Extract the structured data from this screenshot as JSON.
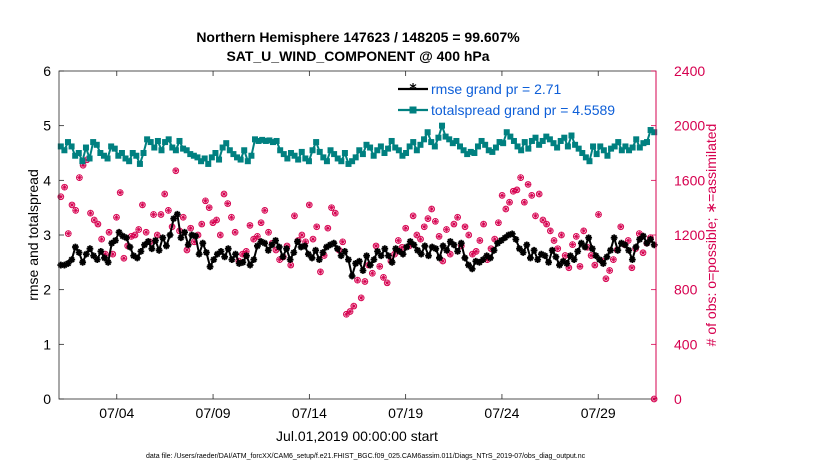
{
  "chart_data": {
    "type": "line",
    "title_line1": "Northern Hemisphere 147623 / 148205 = 99.607%",
    "title_line2": "SAT_U_WIND_COMPONENT @ 400 hPa",
    "xlabel": "Jul.01,2019 00:00:00 start",
    "ylabel_left": "rmse and totalspread",
    "ylabel_right": "# of obs: o=possible; ∗=assimilated",
    "footer": "data file: /Users/raeder/DAI/ATM_forcXX/CAM6_setup/f.e21.FHIST_BGC.f09_025.CAM6assim.011/Diags_NTrS_2019-07/obs_diag_output.nc",
    "x_unit": "days since Jul.01,2019 00:00:00",
    "xlim": [
      0,
      31
    ],
    "ylim_left": [
      0,
      6
    ],
    "ylim_right": [
      0,
      2400
    ],
    "left_ticks": [
      "0",
      "1",
      "2",
      "3",
      "4",
      "5",
      "6"
    ],
    "right_ticks": [
      "0",
      "400",
      "800",
      "1200",
      "1600",
      "2000",
      "2400"
    ],
    "x_ticks": [
      {
        "day": 3,
        "label": "07/04"
      },
      {
        "day": 8,
        "label": "07/09"
      },
      {
        "day": 13,
        "label": "07/14"
      },
      {
        "day": 18,
        "label": "07/19"
      },
      {
        "day": 23,
        "label": "07/24"
      },
      {
        "day": 28,
        "label": "07/29"
      }
    ],
    "colors": {
      "rmse": "#000000",
      "spread": "#008080",
      "obs": "#d6004f",
      "legend_text": "#0e5fd8"
    },
    "series": [
      {
        "name": "rmse",
        "legend": "rmse grand pr = 2.71",
        "values": [
          2.45,
          2.45,
          2.48,
          2.55,
          2.78,
          2.68,
          2.5,
          2.65,
          2.75,
          2.62,
          2.55,
          2.7,
          2.58,
          2.5,
          2.85,
          2.9,
          3.05,
          2.98,
          2.95,
          2.78,
          2.62,
          2.58,
          2.7,
          2.82,
          2.88,
          2.75,
          2.9,
          2.72,
          2.95,
          2.8,
          3.0,
          3.3,
          3.38,
          2.95,
          3.05,
          2.82,
          3.0,
          2.98,
          2.65,
          2.85,
          2.68,
          2.42,
          2.55,
          2.65,
          2.7,
          2.6,
          2.75,
          2.55,
          2.65,
          2.48,
          2.5,
          2.62,
          2.45,
          2.55,
          2.8,
          2.88,
          2.85,
          2.72,
          2.82,
          2.9,
          2.78,
          2.6,
          2.75,
          2.55,
          2.68,
          2.88,
          2.78,
          2.8,
          2.65,
          2.58,
          2.72,
          2.55,
          2.68,
          2.78,
          2.82,
          2.85,
          2.75,
          2.62,
          2.7,
          2.55,
          2.25,
          2.48,
          2.52,
          2.35,
          2.62,
          2.45,
          2.55,
          2.7,
          2.62,
          2.75,
          2.62,
          2.5,
          2.75,
          2.7,
          2.65,
          2.78,
          2.88,
          2.82,
          2.72,
          2.65,
          2.8,
          2.62,
          2.78,
          2.75,
          2.58,
          2.8,
          2.72,
          2.88,
          2.82,
          2.7,
          2.85,
          2.58,
          2.45,
          2.38,
          2.52,
          2.5,
          2.55,
          2.62,
          2.58,
          2.72,
          2.85,
          2.9,
          2.95,
          3.0,
          3.02,
          2.92,
          2.75,
          2.68,
          2.82,
          2.58,
          2.72,
          2.55,
          2.65,
          2.62,
          2.5,
          2.72,
          2.6,
          2.45,
          2.52,
          2.48,
          2.62,
          2.55,
          2.7,
          2.85,
          2.78,
          2.95,
          2.75,
          2.62,
          2.55,
          2.48,
          2.6,
          2.72,
          2.95,
          2.72,
          2.85,
          2.82,
          2.72,
          2.55,
          2.78,
          2.92,
          2.98,
          2.85,
          2.92,
          2.82
        ]
      },
      {
        "name": "totalspread",
        "legend": "totalspread grand pr = 4.5589",
        "values": [
          4.62,
          4.55,
          4.7,
          4.62,
          4.45,
          4.5,
          4.35,
          4.6,
          4.4,
          4.7,
          4.65,
          4.5,
          4.45,
          4.4,
          4.62,
          4.58,
          4.45,
          4.5,
          4.4,
          4.35,
          4.5,
          4.45,
          4.3,
          4.5,
          4.75,
          4.7,
          4.6,
          4.72,
          4.55,
          4.7,
          4.75,
          4.6,
          4.55,
          4.72,
          4.58,
          4.55,
          4.48,
          4.45,
          4.42,
          4.35,
          4.4,
          4.3,
          4.42,
          4.5,
          4.38,
          4.6,
          4.68,
          4.55,
          4.48,
          4.42,
          4.38,
          4.55,
          4.35,
          4.45,
          4.75,
          4.72,
          4.74,
          4.72,
          4.73,
          4.7,
          4.72,
          4.55,
          4.48,
          4.4,
          4.5,
          4.45,
          4.38,
          4.52,
          4.4,
          4.35,
          4.55,
          4.7,
          4.52,
          4.42,
          4.35,
          4.55,
          4.48,
          4.4,
          4.35,
          4.5,
          4.3,
          4.35,
          4.42,
          4.55,
          4.48,
          4.65,
          4.6,
          4.45,
          4.55,
          4.62,
          4.5,
          4.58,
          4.72,
          4.6,
          4.55,
          4.45,
          4.5,
          4.62,
          4.7,
          4.55,
          4.65,
          4.75,
          4.88,
          4.7,
          4.62,
          4.78,
          5.0,
          4.8,
          4.75,
          4.68,
          4.72,
          4.62,
          4.55,
          4.48,
          4.52,
          4.5,
          4.62,
          4.72,
          4.65,
          4.55,
          4.52,
          4.6,
          4.7,
          4.68,
          4.88,
          4.8,
          4.72,
          4.62,
          4.55,
          4.7,
          4.58,
          4.72,
          4.78,
          4.65,
          4.72,
          4.8,
          4.75,
          4.68,
          4.6,
          4.72,
          4.78,
          4.62,
          4.82,
          4.65,
          4.58,
          4.5,
          4.42,
          4.35,
          4.62,
          4.48,
          4.62,
          4.55,
          4.45,
          4.58,
          4.62,
          4.7,
          4.55,
          4.62,
          4.55,
          4.6,
          4.75,
          4.6,
          4.68,
          4.7,
          4.92,
          4.88
        ]
      }
    ],
    "obs_possible": [
      1480,
      1550,
      1210,
      1420,
      1380,
      1620,
      1710,
      1750,
      1360,
      1310,
      1280,
      1170,
      1060,
      1220,
      1060,
      1330,
      1510,
      1030,
      1120,
      1190,
      1200,
      1240,
      1420,
      1220,
      1150,
      1350,
      1200,
      1350,
      1500,
      1380,
      1260,
      1670,
      1230,
      1330,
      1090,
      1250,
      1150,
      1200,
      1280,
      1450,
      1400,
      1290,
      1310,
      1200,
      1500,
      1430,
      1330,
      1220,
      1010,
      1060,
      1080,
      1270,
      1170,
      1190,
      1290,
      1380,
      1220,
      1140,
      1090,
      1020,
      1040,
      1120,
      980,
      1340,
      1160,
      1200,
      1150,
      1420,
      1170,
      1260,
      930,
      1050,
      1250,
      1400,
      1360,
      1090,
      1150,
      620,
      640,
      680,
      870,
      740,
      860,
      980,
      920,
      1120,
      970,
      890,
      850,
      1010,
      1060,
      1160,
      1110,
      1250,
      1120,
      1340,
      1200,
      1170,
      1260,
      1320,
      1390,
      1300,
      1190,
      1010,
      1240,
      1060,
      1280,
      1330,
      1120,
      1260,
      1200,
      1060,
      1080,
      1160,
      1280,
      1020,
      1100,
      1170,
      1290,
      1490,
      1390,
      1440,
      1520,
      1530,
      1620,
      1440,
      1570,
      1490,
      1340,
      1500,
      1310,
      1280,
      1230,
      1160,
      1100,
      1200,
      1050,
      960,
      1130,
      1190,
      970,
      1230,
      1110,
      1050,
      980,
      1350,
      1010,
      880,
      940,
      1020,
      1090,
      1260,
      1130,
      1160,
      960,
      1100,
      1210,
      1070,
      1140,
      1180,
      0
    ]
  }
}
